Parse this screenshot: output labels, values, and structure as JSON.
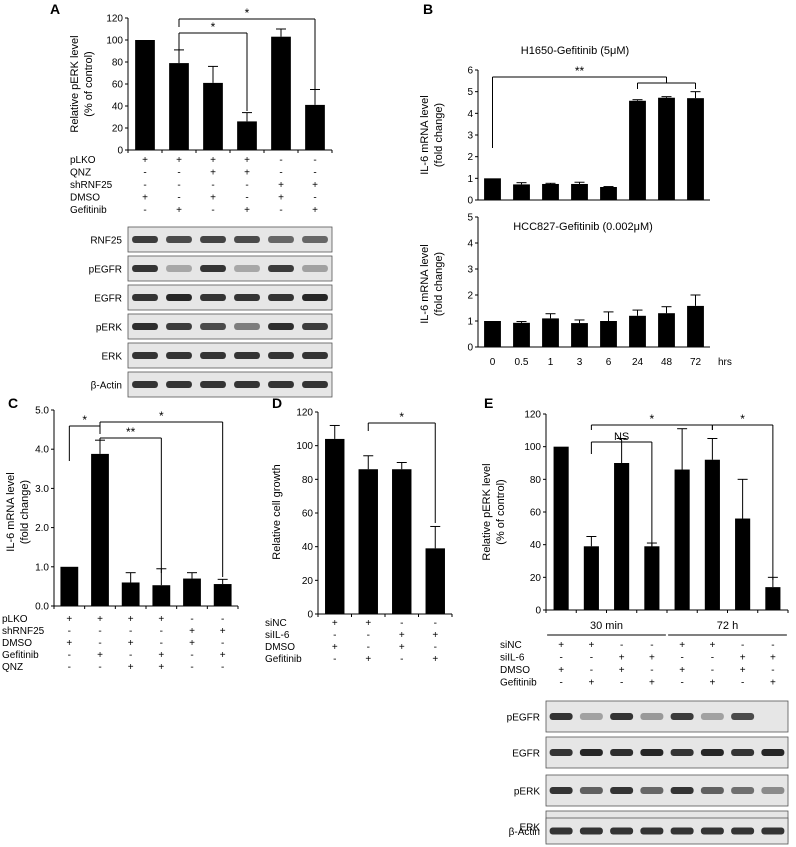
{
  "panels": {
    "A": {
      "letter": "A",
      "ylabel": [
        "Relative pERK level",
        "(% of control)"
      ],
      "yticks": [
        "0",
        "20",
        "40",
        "60",
        "80",
        "100",
        "120"
      ],
      "sig": [
        "*",
        "*"
      ],
      "cond_rows": [
        {
          "label": "pLKO",
          "marks": [
            "+",
            "+",
            "+",
            "+",
            "-",
            "-"
          ]
        },
        {
          "label": "QNZ",
          "marks": [
            "-",
            "-",
            "+",
            "+",
            "-",
            "-"
          ]
        },
        {
          "label": "shRNF25",
          "marks": [
            "-",
            "-",
            "-",
            "-",
            "+",
            "+"
          ]
        },
        {
          "label": "DMSO",
          "marks": [
            "+",
            "-",
            "+",
            "-",
            "+",
            "-"
          ]
        },
        {
          "label": "Gefitinib",
          "marks": [
            "-",
            "+",
            "-",
            "+",
            "-",
            "+"
          ]
        }
      ],
      "blots": [
        "RNF25",
        "pEGFR",
        "EGFR",
        "pERK",
        "ERK",
        "β-Actin"
      ]
    },
    "B": {
      "letter": "B",
      "top_title": "H1650-Gefitinib  (5μM)",
      "bottom_title": "HCC827-Gefitinib  (0.002μM)",
      "ylabel": [
        "IL-6 mRNA level",
        "(fold change)"
      ],
      "top_yticks": [
        "0",
        "1",
        "2",
        "3",
        "4",
        "5",
        "6"
      ],
      "bottom_yticks": [
        "0",
        "1",
        "2",
        "3",
        "4",
        "5"
      ],
      "xticks": [
        "0",
        "0.5",
        "1",
        "3",
        "6",
        "24",
        "48",
        "72"
      ],
      "xunit": "hrs",
      "sig": "**"
    },
    "C": {
      "letter": "C",
      "ylabel": [
        "IL-6 mRNA level",
        "(fold change)"
      ],
      "yticks": [
        "0.0",
        "1.0",
        "2.0",
        "3.0",
        "4.0",
        "5.0"
      ],
      "sig": [
        "*",
        "**",
        "*"
      ],
      "cond_rows": [
        {
          "label": "pLKO",
          "marks": [
            "+",
            "+",
            "+",
            "+",
            "-",
            "-"
          ]
        },
        {
          "label": "shRNF25",
          "marks": [
            "-",
            "-",
            "-",
            "-",
            "+",
            "+"
          ]
        },
        {
          "label": "DMSO",
          "marks": [
            "+",
            "-",
            "+",
            "-",
            "+",
            "-"
          ]
        },
        {
          "label": "Gefitinib",
          "marks": [
            "-",
            "+",
            "-",
            "+",
            "-",
            "+"
          ]
        },
        {
          "label": "QNZ",
          "marks": [
            "-",
            "-",
            "+",
            "+",
            "-",
            "-"
          ]
        }
      ]
    },
    "D": {
      "letter": "D",
      "ylabel": [
        "Relative cell growth"
      ],
      "yticks": [
        "0",
        "20",
        "40",
        "60",
        "80",
        "100",
        "120"
      ],
      "sig": [
        "*"
      ],
      "cond_rows": [
        {
          "label": "siNC",
          "marks": [
            "+",
            "+",
            "-",
            "-"
          ]
        },
        {
          "label": "siIL-6",
          "marks": [
            "-",
            "-",
            "+",
            "+"
          ]
        },
        {
          "label": "DMSO",
          "marks": [
            "+",
            "-",
            "+",
            "-"
          ]
        },
        {
          "label": "Gefitinib",
          "marks": [
            "-",
            "+",
            "-",
            "+"
          ]
        }
      ]
    },
    "E": {
      "letter": "E",
      "ylabel": [
        "Relative pERK level",
        "(% of control)"
      ],
      "yticks": [
        "0",
        "20",
        "40",
        "60",
        "80",
        "100",
        "120"
      ],
      "sig": [
        "NS",
        "*",
        "*"
      ],
      "time_labels": [
        "30 min",
        "72 h"
      ],
      "cond_rows": [
        {
          "label": "siNC",
          "marks": [
            "+",
            "+",
            "-",
            "-",
            "+",
            "+",
            "-",
            "-"
          ]
        },
        {
          "label": "siIL-6",
          "marks": [
            "-",
            "-",
            "+",
            "+",
            "-",
            "-",
            "+",
            "+"
          ]
        },
        {
          "label": "DMSO",
          "marks": [
            "+",
            "-",
            "+",
            "-",
            "+",
            "-",
            "+",
            "-"
          ]
        },
        {
          "label": "Gefitinib",
          "marks": [
            "-",
            "+",
            "-",
            "+",
            "-",
            "+",
            "-",
            "+"
          ]
        }
      ],
      "blots": [
        "pEGFR",
        "EGFR",
        "pERK",
        "ERK",
        "β-Actin"
      ]
    }
  },
  "colors": {
    "bar": "#000000",
    "axis": "#000000",
    "blot_bg": "#e6e6e6",
    "band": "#262626"
  },
  "chart_data": [
    {
      "panel": "A",
      "type": "bar",
      "ylim": [
        0,
        120
      ],
      "categories": [
        "1",
        "2",
        "3",
        "4",
        "5",
        "6"
      ],
      "values": [
        100,
        79,
        61,
        26,
        103,
        41
      ],
      "errors": [
        0,
        12,
        15,
        8,
        7,
        14
      ]
    },
    {
      "panel": "B-top",
      "type": "bar",
      "title": "H1650-Gefitinib  (5μM)",
      "ylim": [
        0,
        6
      ],
      "categories": [
        "0",
        "0.5",
        "1",
        "3",
        "6",
        "24",
        "48",
        "72"
      ],
      "values": [
        1.0,
        0.72,
        0.74,
        0.74,
        0.6,
        4.58,
        4.72,
        4.7
      ],
      "errors": [
        0,
        0.08,
        0.03,
        0.08,
        0.02,
        0.05,
        0.05,
        0.3
      ]
    },
    {
      "panel": "B-bottom",
      "type": "bar",
      "title": "HCC827-Gefitinib  (0.002μM)",
      "ylim": [
        0,
        5
      ],
      "categories": [
        "0",
        "0.5",
        "1",
        "3",
        "6",
        "24",
        "48",
        "72"
      ],
      "values": [
        1.0,
        0.93,
        1.1,
        0.92,
        1.0,
        1.2,
        1.3,
        1.58
      ],
      "errors": [
        0,
        0.05,
        0.18,
        0.12,
        0.35,
        0.22,
        0.25,
        0.42
      ]
    },
    {
      "panel": "C",
      "type": "bar",
      "ylim": [
        0,
        5
      ],
      "categories": [
        "1",
        "2",
        "3",
        "4",
        "5",
        "6"
      ],
      "values": [
        1.0,
        3.88,
        0.6,
        0.53,
        0.7,
        0.56
      ],
      "errors": [
        0,
        0.35,
        0.25,
        0.42,
        0.15,
        0.12
      ]
    },
    {
      "panel": "D",
      "type": "bar",
      "ylim": [
        0,
        120
      ],
      "categories": [
        "1",
        "2",
        "3",
        "4"
      ],
      "values": [
        104,
        86,
        86,
        39
      ],
      "errors": [
        8,
        8,
        4,
        13
      ]
    },
    {
      "panel": "E",
      "type": "bar",
      "ylim": [
        0,
        120
      ],
      "categories": [
        "1",
        "2",
        "3",
        "4",
        "5",
        "6",
        "7",
        "8"
      ],
      "values": [
        100,
        39,
        90,
        39,
        86,
        92,
        56,
        14
      ],
      "errors": [
        0,
        6,
        15,
        2,
        25,
        13,
        24,
        6
      ]
    }
  ]
}
